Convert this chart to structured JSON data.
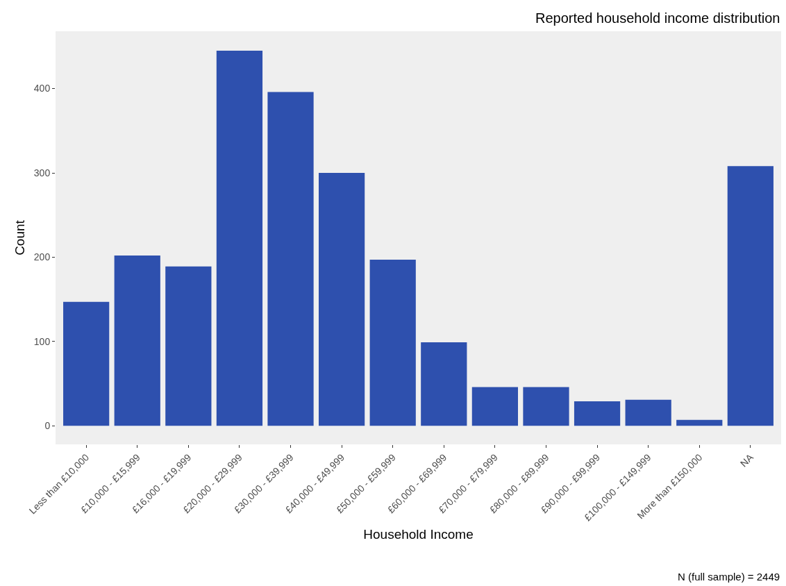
{
  "chart_data": {
    "type": "bar",
    "title": "Reported household income distribution",
    "xlabel": "Household Income",
    "ylabel": "Count",
    "categories": [
      "Less than £10,000",
      "£10,000 - £15,999",
      "£16,000 - £19,999",
      "£20,000 - £29,999",
      "£30,000 - £39,999",
      "£40,000 - £49,999",
      "£50,000 - £59,999",
      "£60,000 - £69,999",
      "£70,000 - £79,999",
      "£80,000 - £89,999",
      "£90,000 - £99,999",
      "£100,000 - £149,999",
      "More than £150,000",
      "NA"
    ],
    "values": [
      147,
      202,
      189,
      445,
      396,
      300,
      197,
      99,
      46,
      46,
      29,
      31,
      7,
      308
    ],
    "color": "#2e50ae",
    "ylim": [
      -22,
      468
    ],
    "yticks": [
      0,
      100,
      200,
      300,
      400
    ],
    "grid": false,
    "legend": false,
    "annotations": [
      "N (full sample) = 2449"
    ]
  }
}
